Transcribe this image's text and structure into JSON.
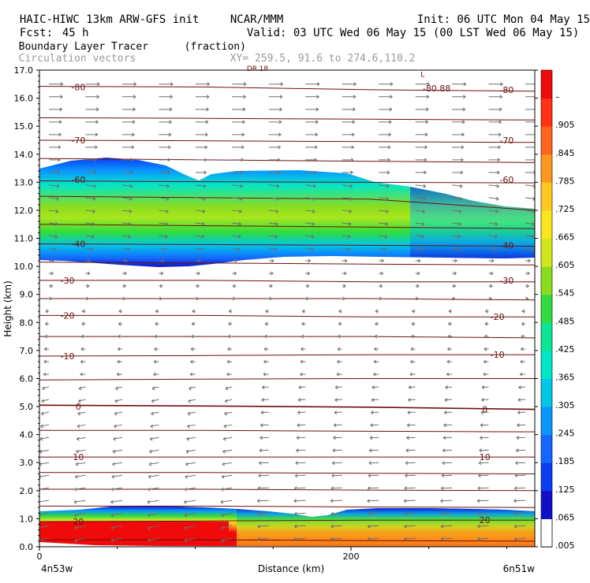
{
  "header": {
    "model_line": "HAIC-HIWC 13km ARW-GFS init",
    "org": "NCAR/MMM",
    "init": "Init: 06 UTC Mon 04 May 15",
    "fcst_label": "Fcst:",
    "fcst_value": "45 h",
    "valid": "Valid: 03 UTC Wed 06 May 15 (00 LST Wed 06 May 15)",
    "field_name": "Boundary Layer Tracer",
    "field_unit": "(fraction)",
    "vector_label": "Circulation vectors",
    "xy_label": "XY= 259.5, 91.6 to 274.6,110.2"
  },
  "chart_data": {
    "type": "heatmap",
    "xlabel": "Distance (km)",
    "ylabel": "Height (km)",
    "xlim": [
      0,
      318
    ],
    "ylim": [
      0,
      17
    ],
    "x_ticks": [
      0,
      200
    ],
    "x_tick_labels": [
      "0",
      "200"
    ],
    "x_end_labels": [
      "4n53w",
      "6n51w"
    ],
    "y_ticks": [
      0,
      1,
      2,
      3,
      4,
      5,
      6,
      7,
      8,
      9,
      10,
      11,
      12,
      13,
      14,
      15,
      16,
      17
    ],
    "y_tick_labels": [
      "0.0",
      "1.0",
      "2.0",
      "3.0",
      "4.0",
      "5.0",
      "6.0",
      "7.0",
      "8.0",
      "9.0",
      "10.0",
      "11.0",
      "12.0",
      "13.0",
      "14.0",
      "15.0",
      "16.0",
      "17.0"
    ],
    "colorbar": {
      "levels": [
        0.005,
        0.065,
        0.125,
        0.185,
        0.245,
        0.305,
        0.365,
        0.425,
        0.485,
        0.545,
        0.605,
        0.665,
        0.725,
        0.785,
        0.845,
        0.905
      ],
      "labels": [
        ".005",
        ".065",
        ".125",
        ".185",
        ".245",
        ".305",
        ".365",
        ".425",
        ".485",
        ".545",
        ".605",
        ".665",
        ".725",
        ".785",
        ".845",
        ".905",
        "–"
      ],
      "colors": [
        "#ffffff",
        "#1010c8",
        "#0a3cf0",
        "#1468ff",
        "#0a96ff",
        "#00c8e6",
        "#00e6c8",
        "#0ae696",
        "#32dc3c",
        "#8cdc1e",
        "#d2e61e",
        "#fae61e",
        "#ffc81e",
        "#ff961e",
        "#ff641e",
        "#ff3214",
        "#f00a0a"
      ]
    },
    "contour_labels": [
      {
        "text": "-80",
        "x": 25,
        "z": 16.4
      },
      {
        "text": "-80",
        "x": 300,
        "z": 16.3
      },
      {
        "text": "-80.88",
        "x": 255,
        "z": 16.35
      },
      {
        "text": "-70",
        "x": 25,
        "z": 14.5
      },
      {
        "text": "-70",
        "x": 300,
        "z": 14.5
      },
      {
        "text": "-60",
        "x": 25,
        "z": 13.1
      },
      {
        "text": "-60",
        "x": 300,
        "z": 13.1
      },
      {
        "text": "-40",
        "x": 25,
        "z": 10.8
      },
      {
        "text": "-40",
        "x": 300,
        "z": 10.75
      },
      {
        "text": "-30",
        "x": 18,
        "z": 9.5
      },
      {
        "text": "-30",
        "x": 300,
        "z": 9.5
      },
      {
        "text": "-20",
        "x": 18,
        "z": 8.25
      },
      {
        "text": "-20",
        "x": 294,
        "z": 8.2
      },
      {
        "text": "-10",
        "x": 18,
        "z": 6.8
      },
      {
        "text": "-10",
        "x": 294,
        "z": 6.85
      },
      {
        "text": "0",
        "x": 25,
        "z": 5.0
      },
      {
        "text": "0",
        "x": 286,
        "z": 4.9
      },
      {
        "text": "10",
        "x": 25,
        "z": 3.2
      },
      {
        "text": "10",
        "x": 286,
        "z": 3.2
      },
      {
        "text": "20",
        "x": 25,
        "z": 0.9
      },
      {
        "text": "20",
        "x": 286,
        "z": 0.95
      }
    ],
    "partial_labels": [
      {
        "text": "DR.18",
        "x": 140,
        "z": 17.05
      },
      {
        "text": "L",
        "x": 246,
        "z": 16.85
      }
    ]
  }
}
